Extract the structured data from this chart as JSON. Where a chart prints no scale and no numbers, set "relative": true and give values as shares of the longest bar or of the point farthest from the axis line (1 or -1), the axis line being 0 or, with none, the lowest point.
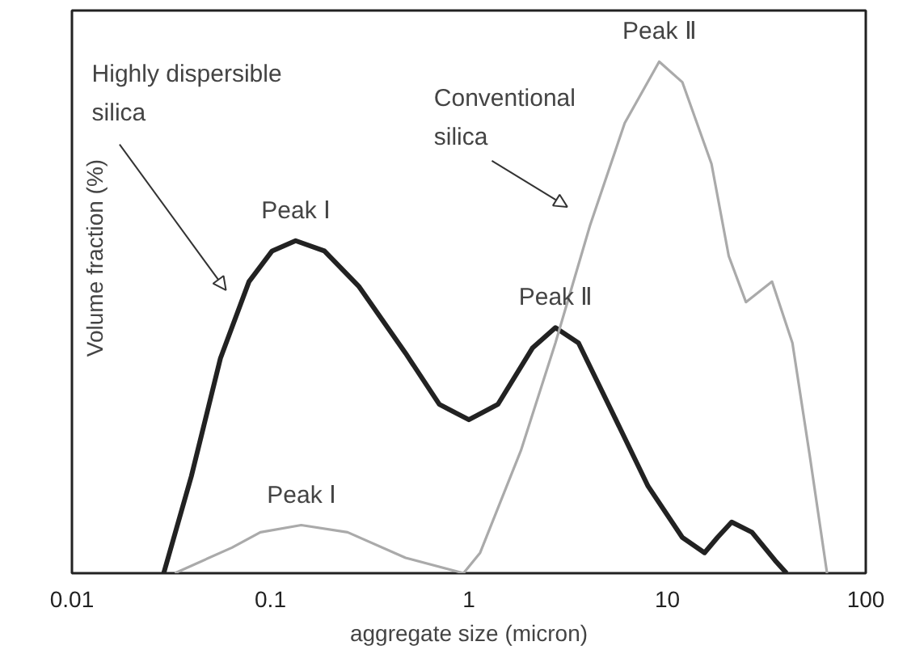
{
  "chart_data": {
    "type": "line",
    "relative": true,
    "xlabel": "aggregate size (micron)",
    "ylabel": "Volume fraction (%)",
    "log": "x",
    "xlim": [
      0.01,
      100
    ],
    "xticks": [
      0.01,
      0.1,
      1,
      10,
      100
    ],
    "grid": false,
    "legend": false,
    "marker": "none",
    "line_style": "solid",
    "series": [
      {
        "name": "Highly dispersible\nsilica",
        "color": "#222222",
        "x": [
          0.029,
          0.04,
          0.056,
          0.078,
          0.102,
          0.134,
          0.187,
          0.28,
          0.48,
          0.71,
          1.0,
          1.4,
          2.09,
          2.73,
          3.57,
          5.35,
          8.0,
          11.9,
          15.4,
          17.9,
          21.1,
          26.7,
          34.9,
          39.9
        ],
        "values": [
          0,
          0.19,
          0.42,
          0.57,
          0.63,
          0.65,
          0.63,
          0.56,
          0.43,
          0.33,
          0.3,
          0.33,
          0.44,
          0.48,
          0.45,
          0.31,
          0.17,
          0.07,
          0.04,
          0.07,
          0.1,
          0.08,
          0.025,
          0
        ]
      },
      {
        "name": "Conventional\nsilica",
        "color": "#aaaaaa",
        "x": [
          0.033,
          0.064,
          0.089,
          0.143,
          0.245,
          0.48,
          0.94,
          1.14,
          1.83,
          2.73,
          4.08,
          6.1,
          9.1,
          11.9,
          16.7,
          20.4,
          24.9,
          33.7,
          42.7,
          52.2,
          63.8
        ],
        "values": [
          0,
          0.05,
          0.08,
          0.094,
          0.08,
          0.03,
          0,
          0.04,
          0.24,
          0.45,
          0.68,
          0.88,
          1.0,
          0.96,
          0.8,
          0.62,
          0.53,
          0.57,
          0.45,
          0.23,
          0
        ]
      }
    ],
    "annotations": [
      {
        "text": "Peak Ⅰ",
        "x": 0.134,
        "y": 0.65
      },
      {
        "text": "Peak Ⅱ",
        "x": 2.73,
        "y": 0.48
      },
      {
        "text": "Peak Ⅰ",
        "x": 0.143,
        "y": 0.094
      },
      {
        "text": "Peak Ⅱ",
        "x": 9.1,
        "y": 1.0
      }
    ]
  }
}
